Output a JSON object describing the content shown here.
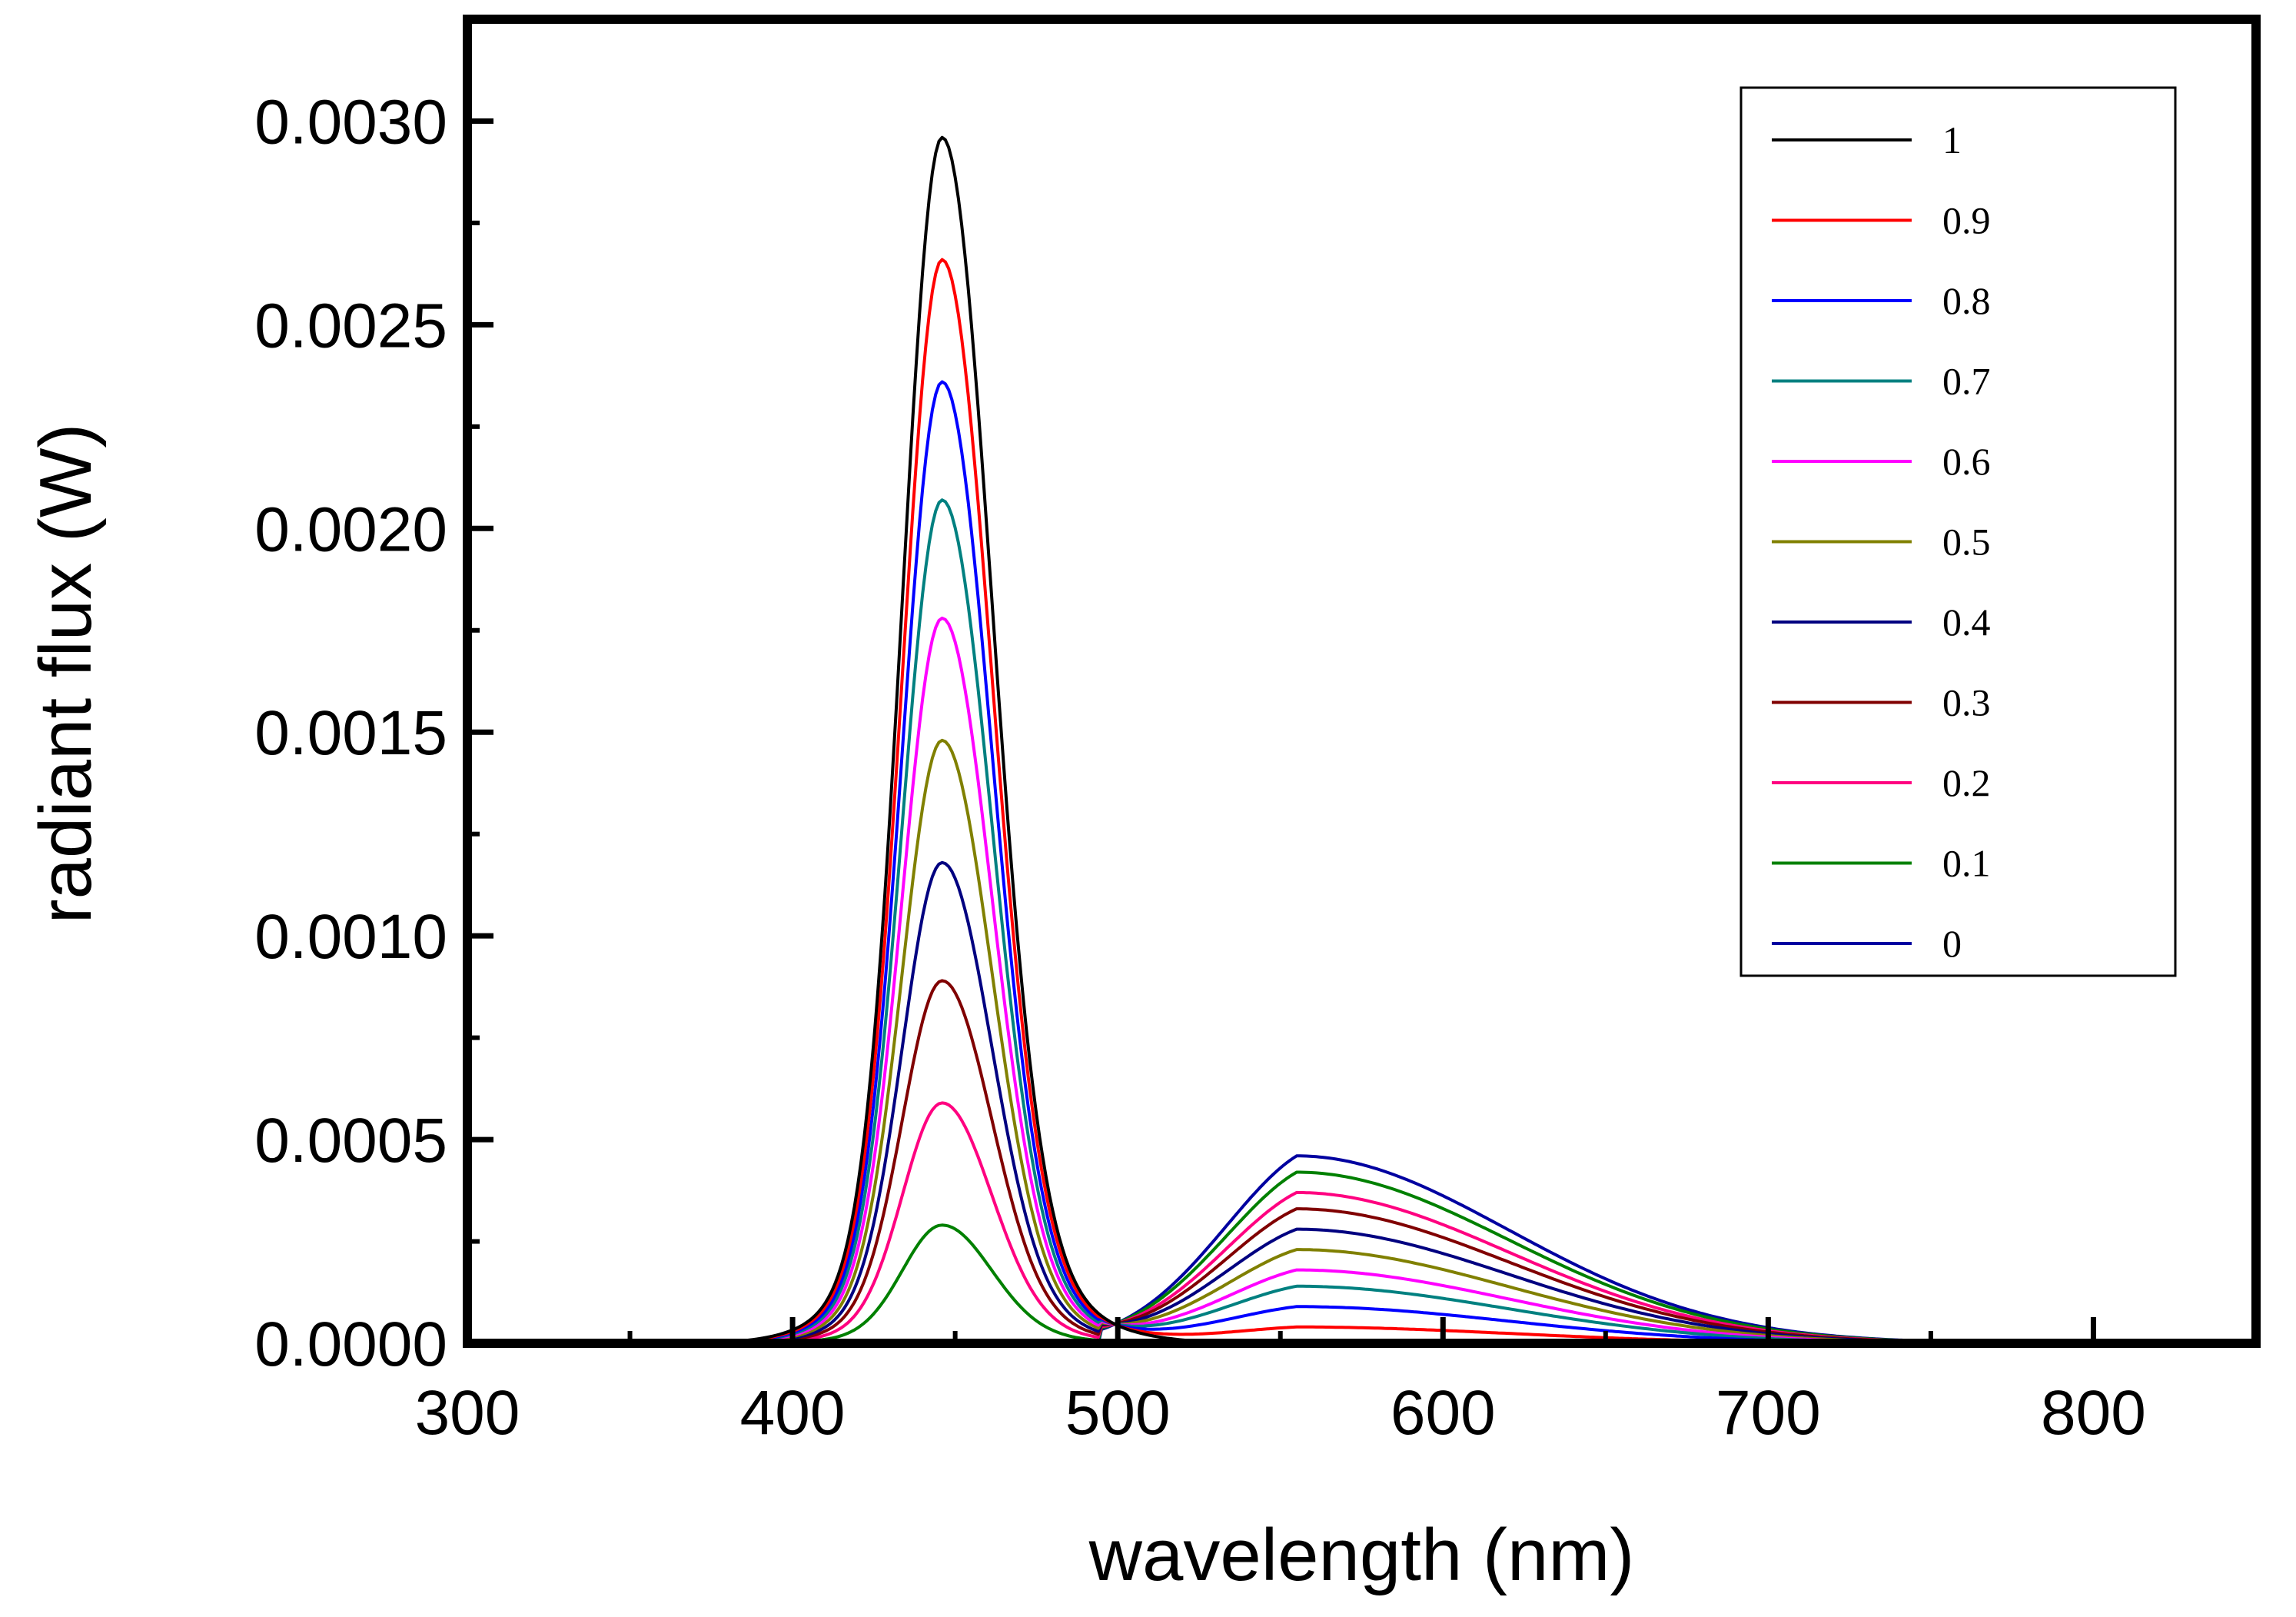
{
  "chart_data": {
    "type": "line",
    "title": "",
    "xlabel": "wavelength (nm)",
    "ylabel": "radiant flux (W)",
    "xlim": [
      300,
      850
    ],
    "ylim": [
      0,
      0.00325
    ],
    "x_ticks": [
      300,
      400,
      500,
      600,
      700,
      800
    ],
    "x_tick_labels": [
      "300",
      "400",
      "500",
      "600",
      "700",
      "800"
    ],
    "y_ticks": [
      0,
      0.0005,
      0.001,
      0.0015,
      0.002,
      0.0025,
      0.003
    ],
    "y_tick_labels": [
      "0.0000",
      "0.0005",
      "0.0010",
      "0.0015",
      "0.0020",
      "0.0025",
      "0.0030"
    ],
    "grid": false,
    "legend_position": "top-right",
    "x_range_of_data": [
      380,
      780
    ],
    "blue_peak_nm": 446,
    "yellow_peak_nm": 555,
    "series": [
      {
        "name": "1",
        "color": "#000000",
        "blue_peak": 0.00296,
        "yellow_peak": 0.0
      },
      {
        "name": "0.9",
        "color": "#ff0000",
        "blue_peak": 0.00266,
        "yellow_peak": 4e-05
      },
      {
        "name": "0.8",
        "color": "#0000ff",
        "blue_peak": 0.00236,
        "yellow_peak": 9e-05
      },
      {
        "name": "0.7",
        "color": "#008080",
        "blue_peak": 0.00207,
        "yellow_peak": 0.00014
      },
      {
        "name": "0.6",
        "color": "#ff00ff",
        "blue_peak": 0.00178,
        "yellow_peak": 0.00018
      },
      {
        "name": "0.5",
        "color": "#808000",
        "blue_peak": 0.00148,
        "yellow_peak": 0.00023
      },
      {
        "name": "0.4",
        "color": "#000080",
        "blue_peak": 0.00118,
        "yellow_peak": 0.00028
      },
      {
        "name": "0.3",
        "color": "#800000",
        "blue_peak": 0.00089,
        "yellow_peak": 0.00033
      },
      {
        "name": "0.2",
        "color": "#ff0080",
        "blue_peak": 0.00059,
        "yellow_peak": 0.00037
      },
      {
        "name": "0.1",
        "color": "#008000",
        "blue_peak": 0.00029,
        "yellow_peak": 0.00042
      },
      {
        "name": "0",
        "color": "#0000a0",
        "blue_peak": 0.0,
        "yellow_peak": 0.00046
      }
    ]
  }
}
